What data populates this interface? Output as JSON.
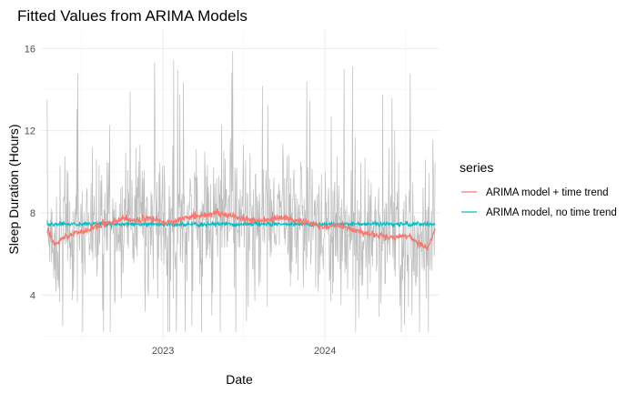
{
  "chart_data": {
    "type": "line",
    "title": "Fitted Values from ARIMA Models",
    "xlabel": "Date",
    "ylabel": "Sleep Duration (Hours)",
    "x_range": [
      "2022-04-01",
      "2024-09-15"
    ],
    "ylim": [
      1.8,
      16.9
    ],
    "x_ticks": [
      {
        "label": "2023",
        "value": "2023-01-01"
      },
      {
        "label": "2024",
        "value": "2024-01-01"
      }
    ],
    "y_ticks": [
      4,
      8,
      12,
      16
    ],
    "grid": true,
    "legend": {
      "title": "series",
      "placement": "right"
    },
    "observed": {
      "color": "#bdbdbd",
      "range_estimate": [
        2.2,
        16
      ]
    },
    "series": [
      {
        "name": "ARIMA model + time trend",
        "color": "#F8766D",
        "x": [
          "2022-04-15",
          "2022-05-01",
          "2022-05-15",
          "2022-06-01",
          "2022-07-01",
          "2022-08-01",
          "2022-09-01",
          "2022-10-01",
          "2022-11-01",
          "2022-12-01",
          "2023-01-01",
          "2023-02-01",
          "2023-03-01",
          "2023-04-01",
          "2023-05-01",
          "2023-06-01",
          "2023-07-01",
          "2023-08-01",
          "2023-09-01",
          "2023-10-01",
          "2023-11-01",
          "2023-12-01",
          "2024-01-01",
          "2024-02-01",
          "2024-03-01",
          "2024-04-01",
          "2024-05-01",
          "2024-06-01",
          "2024-07-01",
          "2024-08-01",
          "2024-08-20",
          "2024-09-05"
        ],
        "y": [
          7.3,
          6.4,
          6.7,
          6.9,
          7.1,
          7.3,
          7.5,
          7.7,
          7.6,
          7.8,
          7.5,
          7.6,
          7.8,
          7.9,
          8.0,
          7.9,
          7.7,
          7.6,
          7.7,
          7.8,
          7.6,
          7.5,
          7.3,
          7.4,
          7.2,
          7.0,
          6.9,
          6.8,
          6.9,
          6.5,
          6.3,
          7.2
        ]
      },
      {
        "name": "ARIMA model, no time trend",
        "color": "#00BFC4",
        "x": [
          "2022-04-15",
          "2024-09-05"
        ],
        "y": [
          7.45,
          7.45
        ]
      }
    ]
  }
}
